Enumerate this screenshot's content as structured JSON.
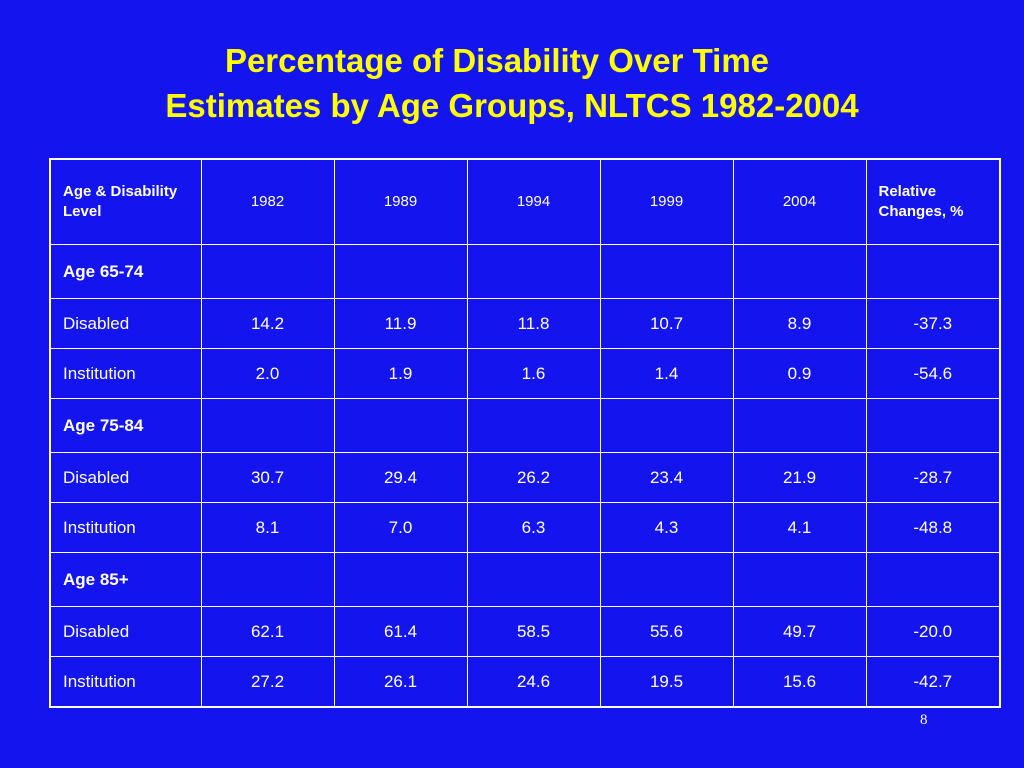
{
  "title": {
    "line1": "Percentage of Disability Over Time",
    "line2": "Estimates by Age Groups, NLTCS 1982-2004"
  },
  "table": {
    "header": {
      "label": "Age & Disability Level",
      "years": [
        "1982",
        "1989",
        "1994",
        "1999",
        "2004"
      ],
      "change": "Relative Changes, %"
    },
    "groups": [
      {
        "name": "Age 65-74",
        "rows": [
          {
            "label": "Disabled",
            "values": [
              "14.2",
              "11.9",
              "11.8",
              "10.7",
              "8.9"
            ],
            "change": "-37.3"
          },
          {
            "label": "Institution",
            "values": [
              "2.0",
              "1.9",
              "1.6",
              "1.4",
              "0.9"
            ],
            "change": "-54.6"
          }
        ]
      },
      {
        "name": "Age 75-84",
        "rows": [
          {
            "label": "Disabled",
            "values": [
              "30.7",
              "29.4",
              "26.2",
              "23.4",
              "21.9"
            ],
            "change": "-28.7"
          },
          {
            "label": "Institution",
            "values": [
              "8.1",
              "7.0",
              "6.3",
              "4.3",
              "4.1"
            ],
            "change": "-48.8"
          }
        ]
      },
      {
        "name": "Age 85+",
        "rows": [
          {
            "label": "Disabled",
            "values": [
              "62.1",
              "61.4",
              "58.5",
              "55.6",
              "49.7"
            ],
            "change": "-20.0"
          },
          {
            "label": "Institution",
            "values": [
              "27.2",
              "26.1",
              "24.6",
              "19.5",
              "15.6"
            ],
            "change": "-42.7"
          }
        ]
      }
    ]
  },
  "page_number": "8",
  "colors": {
    "background": "#1414ee",
    "title": "#ffff00",
    "text": "#ffffff",
    "border": "#ffffff"
  }
}
